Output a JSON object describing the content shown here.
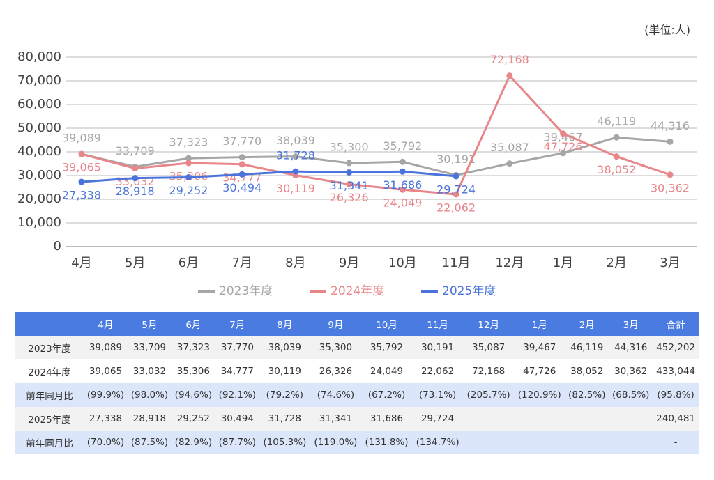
{
  "chart_data": {
    "type": "line",
    "annotation": "(単位:人)",
    "categories": [
      "4月",
      "5月",
      "6月",
      "7月",
      "8月",
      "9月",
      "10月",
      "11月",
      "12月",
      "1月",
      "2月",
      "3月"
    ],
    "ylim": [
      0,
      80000
    ],
    "yticks": [
      0,
      {
        "value": 10000,
        "label": "10,000"
      },
      {
        "value": 20000,
        "label": "20,000"
      },
      {
        "value": 30000,
        "label": "30,000"
      },
      {
        "value": 40000,
        "label": "40,000"
      },
      {
        "value": 50000,
        "label": "50,000"
      },
      {
        "value": 60000,
        "label": "60,000"
      },
      {
        "value": 70000,
        "label": "70,000"
      },
      {
        "value": 80000,
        "label": "80,000"
      }
    ],
    "grid": true,
    "legend": "bottom",
    "series": [
      {
        "name": "2023年度",
        "color": "#a6a6a6",
        "values": [
          39089,
          33709,
          37323,
          37770,
          38039,
          35300,
          35792,
          30191,
          35087,
          39467,
          46119,
          44316
        ],
        "value_labels": [
          "39,089",
          "33,709",
          "37,323",
          "37,770",
          "38,039",
          "35,300",
          "35,792",
          "30,191",
          "35,087",
          "39,467",
          "46,119",
          "44,316"
        ]
      },
      {
        "name": "2024年度",
        "color": "#e8868a",
        "values": [
          39065,
          33032,
          35306,
          34777,
          30119,
          26326,
          24049,
          22062,
          72168,
          47726,
          38052,
          30362
        ],
        "value_labels": [
          "39,065",
          "33,032",
          "35,306",
          "34,777",
          "30,119",
          "26,326",
          "24,049",
          "22,062",
          "72,168",
          "47,726",
          "38,052",
          "30,362"
        ]
      },
      {
        "name": "2025年度",
        "color": "#4a74dc",
        "values": [
          27338,
          28918,
          29252,
          30494,
          31728,
          31341,
          31686,
          29724,
          null,
          null,
          null,
          null
        ],
        "value_labels": [
          "27,338",
          "28,918",
          "29,252",
          "30,494",
          "31,728",
          "31,341",
          "31,686",
          "29,724",
          null,
          null,
          null,
          null
        ]
      }
    ]
  },
  "table": {
    "header": [
      "4月",
      "5月",
      "6月",
      "7月",
      "8月",
      "9月",
      "10月",
      "11月",
      "12月",
      "1月",
      "2月",
      "3月",
      "合計"
    ],
    "rows": [
      [
        "2023年度",
        "39,089",
        "33,709",
        "37,323",
        "37,770",
        "38,039",
        "35,300",
        "35,792",
        "30,191",
        "35,087",
        "39,467",
        "46,119",
        "44,316",
        "452,202"
      ],
      [
        "2024年度",
        "39,065",
        "33,032",
        "35,306",
        "34,777",
        "30,119",
        "26,326",
        "24,049",
        "22,062",
        "72,168",
        "47,726",
        "38,052",
        "30,362",
        "433,044"
      ],
      [
        "前年同月比",
        "(99.9%)",
        "(98.0%)",
        "(94.6%)",
        "(92.1%)",
        "(79.2%)",
        "(74.6%)",
        "(67.2%)",
        "(73.1%)",
        "(205.7%)",
        "(120.9%)",
        "(82.5%)",
        "(68.5%)",
        "(95.8%)"
      ],
      [
        "2025年度",
        "27,338",
        "28,918",
        "29,252",
        "30,494",
        "31,728",
        "31,341",
        "31,686",
        "29,724",
        null,
        null,
        null,
        null,
        "240,481"
      ],
      [
        "前年同月比",
        "(70.0%)",
        "(87.5%)",
        "(82.9%)",
        "(87.7%)",
        "(105.3%)",
        "(119.0%)",
        "(131.8%)",
        "(134.7%)",
        null,
        null,
        null,
        null,
        "-"
      ]
    ]
  }
}
